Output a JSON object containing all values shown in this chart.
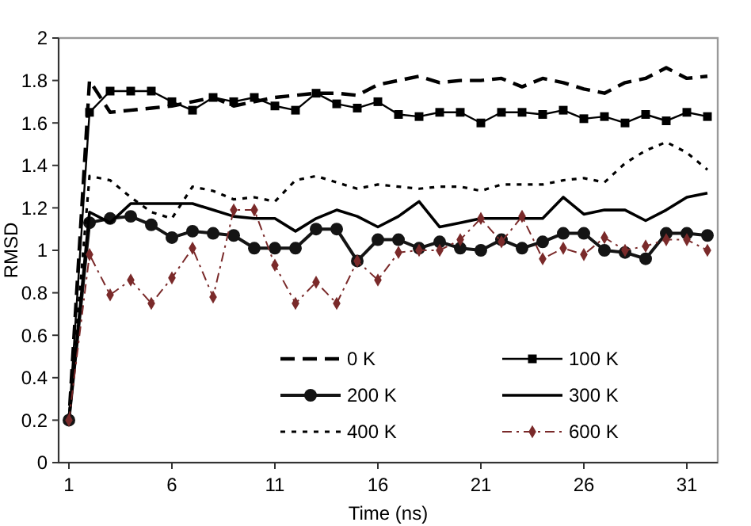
{
  "chart_data": {
    "type": "line",
    "xlabel": "Time (ns)",
    "ylabel": "RMSD",
    "x": [
      1,
      2,
      3,
      4,
      5,
      6,
      7,
      8,
      9,
      10,
      11,
      12,
      13,
      14,
      15,
      16,
      17,
      18,
      19,
      20,
      21,
      22,
      23,
      24,
      25,
      26,
      27,
      28,
      29,
      30,
      31,
      32
    ],
    "xlim": [
      0.5,
      32.5
    ],
    "xticks": [
      1,
      6,
      11,
      16,
      21,
      26,
      31
    ],
    "ylim": [
      0,
      2
    ],
    "yticks": [
      0,
      0.2,
      0.4,
      0.6,
      0.8,
      1,
      1.2,
      1.4,
      1.6,
      1.8,
      2
    ],
    "grid": false,
    "legend": "bottom right",
    "series": [
      {
        "name": "0 K",
        "color": "#000000",
        "line_style": "dashed",
        "marker": "none",
        "values": [
          0.2,
          1.8,
          1.65,
          1.66,
          1.67,
          1.68,
          1.7,
          1.72,
          1.68,
          1.7,
          1.72,
          1.73,
          1.74,
          1.74,
          1.73,
          1.78,
          1.8,
          1.82,
          1.79,
          1.8,
          1.8,
          1.81,
          1.77,
          1.81,
          1.79,
          1.76,
          1.74,
          1.79,
          1.81,
          1.86,
          1.81,
          1.82
        ]
      },
      {
        "name": "100 K",
        "color": "#000000",
        "line_style": "solid",
        "marker": "square",
        "values": [
          0.2,
          1.65,
          1.75,
          1.75,
          1.75,
          1.7,
          1.66,
          1.72,
          1.7,
          1.72,
          1.68,
          1.66,
          1.74,
          1.69,
          1.67,
          1.7,
          1.64,
          1.63,
          1.65,
          1.65,
          1.6,
          1.65,
          1.65,
          1.64,
          1.66,
          1.62,
          1.63,
          1.6,
          1.64,
          1.61,
          1.65,
          1.63
        ]
      },
      {
        "name": "200 K",
        "color": "#141414",
        "line_style": "solid",
        "marker": "circle",
        "values": [
          0.2,
          1.13,
          1.15,
          1.16,
          1.12,
          1.06,
          1.09,
          1.08,
          1.07,
          1.01,
          1.01,
          1.01,
          1.1,
          1.1,
          0.95,
          1.05,
          1.05,
          1.01,
          1.04,
          1.01,
          1,
          1.05,
          1.01,
          1.04,
          1.08,
          1.08,
          1,
          0.99,
          0.96,
          1.08,
          1.08,
          1.07
        ]
      },
      {
        "name": "300 K",
        "color": "#000000",
        "line_style": "solid",
        "marker": "none",
        "values": [
          0.2,
          1.18,
          1.13,
          1.22,
          1.22,
          1.22,
          1.22,
          1.19,
          1.16,
          1.15,
          1.15,
          1.09,
          1.15,
          1.19,
          1.16,
          1.11,
          1.16,
          1.23,
          1.11,
          1.13,
          1.15,
          1.15,
          1.15,
          1.15,
          1.25,
          1.17,
          1.19,
          1.19,
          1.14,
          1.19,
          1.25,
          1.27
        ]
      },
      {
        "name": "400 K",
        "color": "#000000",
        "line_style": "dotted",
        "marker": "none",
        "values": [
          0.2,
          1.35,
          1.33,
          1.25,
          1.18,
          1.15,
          1.3,
          1.28,
          1.24,
          1.25,
          1.23,
          1.33,
          1.35,
          1.32,
          1.29,
          1.31,
          1.3,
          1.29,
          1.3,
          1.3,
          1.28,
          1.31,
          1.31,
          1.31,
          1.33,
          1.34,
          1.32,
          1.41,
          1.47,
          1.51,
          1.46,
          1.38
        ]
      },
      {
        "name": "600 K",
        "color": "#7a2a2a",
        "line_style": "dashed",
        "marker": "diamond",
        "values": [
          0.2,
          0.98,
          0.79,
          0.86,
          0.75,
          0.87,
          1.01,
          0.78,
          1.19,
          1.19,
          0.93,
          0.75,
          0.85,
          0.75,
          0.95,
          0.86,
          0.99,
          1,
          1,
          1.05,
          1.15,
          1.04,
          1.16,
          0.96,
          1.01,
          0.98,
          1.06,
          1,
          1.02,
          1.05,
          1.05,
          1
        ]
      }
    ]
  }
}
